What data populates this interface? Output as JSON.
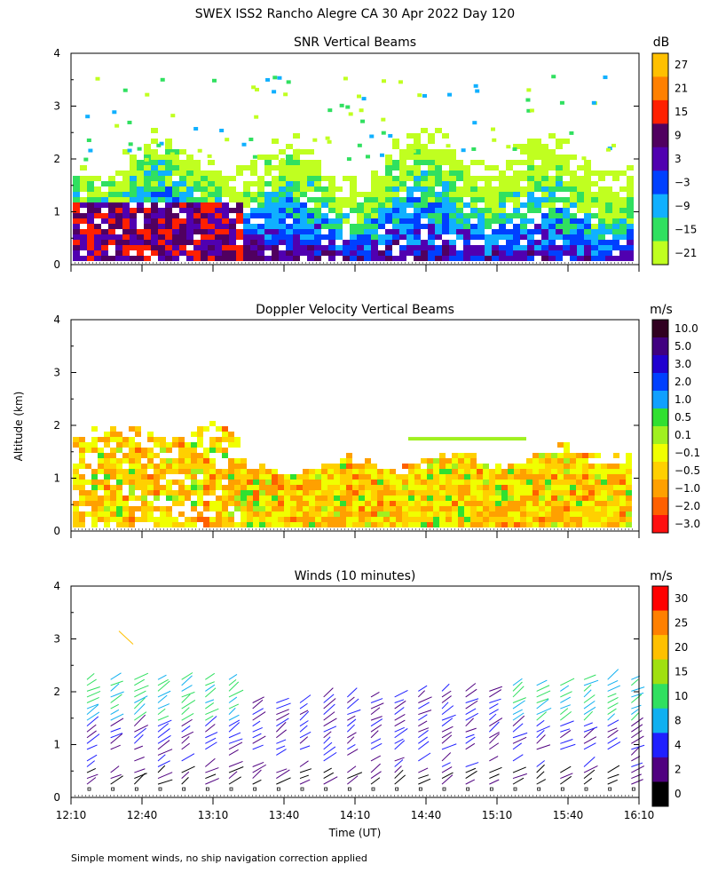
{
  "title": "SWEX ISS2 Rancho Alegre CA  30 Apr 2022 Day 120",
  "ylabel": "Altitude (km)",
  "xlabel": "Time (UT)",
  "footnote": "Simple moment winds, no ship navigation correction applied",
  "x_ticks": [
    "12:10",
    "12:40",
    "13:10",
    "13:40",
    "14:10",
    "14:40",
    "15:10",
    "15:40",
    "16:10"
  ],
  "y_ticks": [
    "0",
    "1",
    "2",
    "3",
    "4"
  ],
  "chart_data": [
    {
      "type": "heatmap",
      "title": "SNR Vertical Beams",
      "unit": "dB",
      "ylim": [
        0,
        4
      ],
      "x_range": [
        "12:10",
        "16:10"
      ],
      "colorbar_labels": [
        "27",
        "21",
        "15",
        "9",
        "3",
        "−3",
        "−9",
        "−15",
        "−21"
      ],
      "colorbar_colors": [
        "#ffc000",
        "#ff8000",
        "#ff2000",
        "#500060",
        "#5000b0",
        "#0040ff",
        "#10b0ff",
        "#30e060",
        "#c0ff20"
      ]
    },
    {
      "type": "heatmap",
      "title": "Doppler Velocity Vertical Beams",
      "unit": "m/s",
      "ylim": [
        0,
        4
      ],
      "x_range": [
        "12:10",
        "16:10"
      ],
      "colorbar_labels": [
        "10.0",
        "5.0",
        "3.0",
        "2.0",
        "1.0",
        "0.5",
        "0.1",
        "−0.1",
        "−0.5",
        "−1.0",
        "−2.0",
        "−3.0"
      ],
      "colorbar_colors": [
        "#300020",
        "#400080",
        "#2000d0",
        "#0040ff",
        "#10a0ff",
        "#30e030",
        "#a0f020",
        "#f0ff00",
        "#ffd000",
        "#ffa000",
        "#ff6000",
        "#ff1010"
      ]
    },
    {
      "type": "scatter",
      "title": "Winds (10 minutes)",
      "unit": "m/s",
      "ylim": [
        0,
        4
      ],
      "x_range": [
        "12:10",
        "16:10"
      ],
      "colorbar_labels": [
        "30",
        "25",
        "20",
        "15",
        "10",
        "8",
        "4",
        "2",
        "0"
      ],
      "colorbar_colors": [
        "#ff0000",
        "#ff8000",
        "#ffc000",
        "#a0e010",
        "#30e060",
        "#10b0f0",
        "#2020ff",
        "#500080",
        "#000000"
      ]
    }
  ]
}
